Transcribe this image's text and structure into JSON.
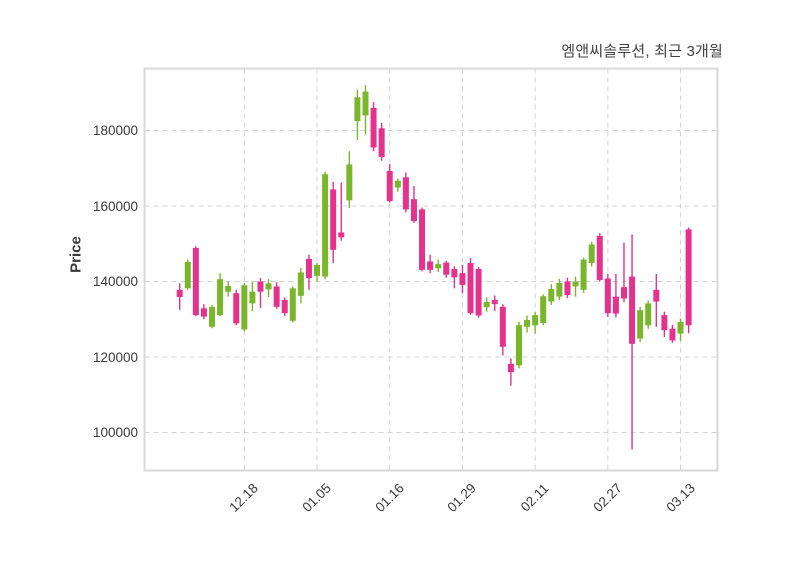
{
  "chart_data": {
    "type": "candlestick",
    "title": "엠앤씨솔루션, 최근 3개월",
    "ylabel": "Price",
    "xlabel": "",
    "grid": "dashed",
    "background": "#ffffff",
    "up_color": "#7ab62c",
    "down_color": "#e5328d",
    "grid_color": "#d3d3d3",
    "border_color": "#d9d9d9",
    "text_color": "#3a3a3a",
    "ylim": [
      89900,
      196400
    ],
    "y_ticks": [
      180000,
      160000,
      140000,
      120000,
      100000
    ],
    "x_ticks": [
      "12.18",
      "01.05",
      "01.16",
      "01.29",
      "02.11",
      "02.27",
      "03.13"
    ],
    "x_tick_indices": [
      8,
      17,
      26,
      35,
      44,
      53,
      62
    ],
    "ohlc_order": [
      "open",
      "high",
      "low",
      "close"
    ],
    "candles": [
      [
        137800,
        139500,
        132500,
        135900
      ],
      [
        138200,
        145800,
        137800,
        145200
      ],
      [
        148900,
        149300,
        130800,
        131100
      ],
      [
        132900,
        134000,
        130000,
        130700
      ],
      [
        128000,
        133800,
        127600,
        133300
      ],
      [
        131100,
        142200,
        130800,
        140600
      ],
      [
        137300,
        140000,
        136000,
        138800
      ],
      [
        136900,
        137800,
        128400,
        128900
      ],
      [
        127300,
        139600,
        126800,
        139000
      ],
      [
        134200,
        140000,
        132100,
        137300
      ],
      [
        140000,
        140900,
        133000,
        137300
      ],
      [
        137900,
        140600,
        135900,
        139500
      ],
      [
        138700,
        139800,
        132800,
        133300
      ],
      [
        135100,
        135800,
        130900,
        131600
      ],
      [
        129600,
        138700,
        129200,
        138200
      ],
      [
        136200,
        143600,
        134200,
        142400
      ],
      [
        146000,
        147100,
        137800,
        140900
      ],
      [
        141500,
        144900,
        140000,
        144400
      ],
      [
        141300,
        169100,
        140600,
        168400
      ],
      [
        164400,
        166400,
        144900,
        148400
      ],
      [
        153000,
        166200,
        150800,
        151700
      ],
      [
        161500,
        174500,
        159500,
        171000
      ],
      [
        182500,
        190800,
        177500,
        188800
      ],
      [
        184000,
        192000,
        179000,
        190300
      ],
      [
        186000,
        187500,
        174500,
        175500
      ],
      [
        180600,
        182000,
        172000,
        173000
      ],
      [
        169300,
        171100,
        160900,
        161300
      ],
      [
        164900,
        167300,
        163800,
        166700
      ],
      [
        167600,
        168900,
        158300,
        159100
      ],
      [
        161800,
        165300,
        155500,
        156000
      ],
      [
        159100,
        159600,
        142700,
        143100
      ],
      [
        145300,
        147100,
        142200,
        143100
      ],
      [
        143500,
        145800,
        142500,
        144600
      ],
      [
        145000,
        145500,
        141000,
        141800
      ],
      [
        143300,
        144000,
        138200,
        141100
      ],
      [
        142200,
        144400,
        136900,
        139100
      ],
      [
        144900,
        146200,
        131200,
        131600
      ],
      [
        143300,
        143800,
        130400,
        131000
      ],
      [
        133200,
        135800,
        132000,
        134600
      ],
      [
        135100,
        136300,
        132200,
        134000
      ],
      [
        133300,
        134000,
        120400,
        122700
      ],
      [
        118200,
        119600,
        112400,
        116000
      ],
      [
        117800,
        129300,
        117000,
        128400
      ],
      [
        128000,
        131000,
        126500,
        129800
      ],
      [
        128400,
        132000,
        126200,
        131100
      ],
      [
        129000,
        136600,
        128500,
        136100
      ],
      [
        134700,
        139300,
        133800,
        138000
      ],
      [
        136000,
        140700,
        135100,
        139600
      ],
      [
        140000,
        141000,
        135600,
        136400
      ],
      [
        138700,
        141300,
        136000,
        140000
      ],
      [
        137800,
        146300,
        137000,
        145800
      ],
      [
        144900,
        150500,
        144000,
        149800
      ],
      [
        152100,
        152800,
        140000,
        140400
      ],
      [
        140800,
        142000,
        130600,
        131600
      ],
      [
        136000,
        142000,
        130500,
        131500
      ],
      [
        138500,
        150300,
        134500,
        135500
      ],
      [
        141300,
        152500,
        95500,
        123500
      ],
      [
        124900,
        133300,
        124000,
        132400
      ],
      [
        128400,
        135000,
        127500,
        134200
      ],
      [
        137800,
        142000,
        128000,
        134700
      ],
      [
        131100,
        132000,
        125300,
        127100
      ],
      [
        127500,
        128500,
        123800,
        124400
      ],
      [
        126200,
        130200,
        124200,
        129300
      ],
      [
        153800,
        154300,
        126300,
        128400
      ]
    ]
  }
}
